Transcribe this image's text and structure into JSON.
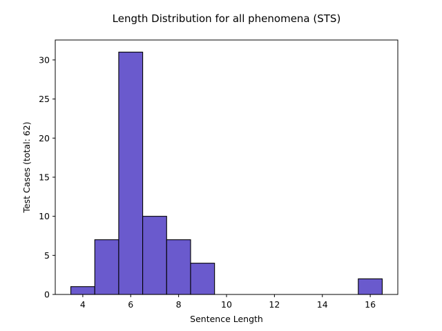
{
  "chart_data": {
    "type": "bar",
    "title": "Length Distribution for all phenomena (STS)",
    "xlabel": "Sentence Length",
    "ylabel": "Test Cases (total: 62)",
    "xlim": [
      2.85,
      17.15
    ],
    "ylim": [
      0,
      32.55
    ],
    "x_ticks": [
      4,
      6,
      8,
      10,
      12,
      14,
      16
    ],
    "y_ticks": [
      0,
      5,
      10,
      15,
      20,
      25,
      30
    ],
    "bin_width": 1,
    "x": [
      4,
      5,
      6,
      7,
      8,
      9,
      16
    ],
    "values": [
      1,
      7,
      31,
      10,
      7,
      4,
      2
    ],
    "bar_color": "#6a5acd",
    "edge_color": "#000000",
    "grid": false,
    "legend": "none"
  }
}
